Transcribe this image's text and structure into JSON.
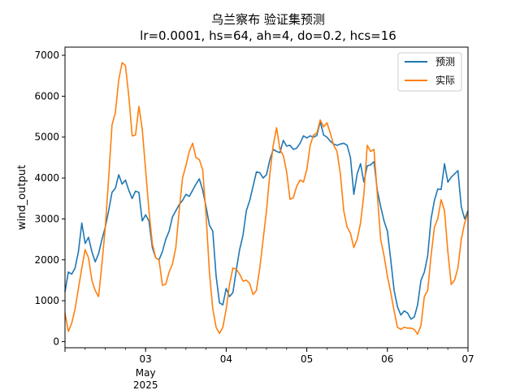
{
  "chart_data": {
    "type": "line",
    "title": "乌兰察布 验证集预测",
    "subtitle": "lr=0.0001, hs=64, ah=4, do=0.2, hcs=16",
    "xlabel": "",
    "ylabel": "wind_output",
    "x_range": [
      "2025-05-02 00:00",
      "2025-05-07 00:00"
    ],
    "ylim": [
      -150,
      7200
    ],
    "y_ticks": [
      0,
      1000,
      2000,
      3000,
      4000,
      5000,
      6000,
      7000
    ],
    "x_ticks": [
      {
        "x": "2025-05-03",
        "label": "03",
        "sub": [
          "May",
          "2025"
        ]
      },
      {
        "x": "2025-05-04",
        "label": "04"
      },
      {
        "x": "2025-05-05",
        "label": "05"
      },
      {
        "x": "2025-05-06",
        "label": "06"
      },
      {
        "x": "2025-05-07",
        "label": "07"
      }
    ],
    "grid": false,
    "legend_position": "top-right",
    "series": [
      {
        "name": "预测",
        "color": "#1f77b4",
        "points": [
          [
            "2025-05-02 00:00",
            1220
          ],
          [
            "2025-05-02 01:00",
            1700
          ],
          [
            "2025-05-02 02:00",
            1650
          ],
          [
            "2025-05-02 03:00",
            1800
          ],
          [
            "2025-05-02 04:00",
            2200
          ],
          [
            "2025-05-02 05:00",
            2900
          ],
          [
            "2025-05-02 06:00",
            2400
          ],
          [
            "2025-05-02 07:00",
            2550
          ],
          [
            "2025-05-02 08:00",
            2200
          ],
          [
            "2025-05-02 09:00",
            1950
          ],
          [
            "2025-05-02 10:00",
            2150
          ],
          [
            "2025-05-02 11:00",
            2500
          ],
          [
            "2025-05-02 12:00",
            2800
          ],
          [
            "2025-05-02 13:00",
            3200
          ],
          [
            "2025-05-02 14:00",
            3650
          ],
          [
            "2025-05-02 15:00",
            3750
          ],
          [
            "2025-05-02 16:00",
            4080
          ],
          [
            "2025-05-02 17:00",
            3850
          ],
          [
            "2025-05-02 18:00",
            3950
          ],
          [
            "2025-05-02 19:00",
            3700
          ],
          [
            "2025-05-02 20:00",
            3500
          ],
          [
            "2025-05-02 21:00",
            3680
          ],
          [
            "2025-05-02 22:00",
            3650
          ],
          [
            "2025-05-02 23:00",
            2950
          ],
          [
            "2025-05-03 00:00",
            3100
          ],
          [
            "2025-05-03 01:00",
            2950
          ],
          [
            "2025-05-03 02:00",
            2300
          ],
          [
            "2025-05-03 03:00",
            2050
          ],
          [
            "2025-05-03 04:00",
            2000
          ],
          [
            "2025-05-03 05:00",
            2200
          ],
          [
            "2025-05-03 06:00",
            2500
          ],
          [
            "2025-05-03 07:00",
            2700
          ],
          [
            "2025-05-03 08:00",
            3050
          ],
          [
            "2025-05-03 09:00",
            3200
          ],
          [
            "2025-05-03 10:00",
            3350
          ],
          [
            "2025-05-03 11:00",
            3450
          ],
          [
            "2025-05-03 12:00",
            3600
          ],
          [
            "2025-05-03 13:00",
            3550
          ],
          [
            "2025-05-03 14:00",
            3700
          ],
          [
            "2025-05-03 15:00",
            3850
          ],
          [
            "2025-05-03 16:00",
            3980
          ],
          [
            "2025-05-03 17:00",
            3700
          ],
          [
            "2025-05-03 18:00",
            3300
          ],
          [
            "2025-05-03 19:00",
            2850
          ],
          [
            "2025-05-03 20:00",
            2700
          ],
          [
            "2025-05-03 21:00",
            1600
          ],
          [
            "2025-05-03 22:00",
            950
          ],
          [
            "2025-05-03 23:00",
            900
          ],
          [
            "2025-05-04 00:00",
            1300
          ],
          [
            "2025-05-04 01:00",
            1100
          ],
          [
            "2025-05-04 02:00",
            1200
          ],
          [
            "2025-05-04 03:00",
            1750
          ],
          [
            "2025-05-04 04:00",
            2250
          ],
          [
            "2025-05-04 05:00",
            2600
          ],
          [
            "2025-05-04 06:00",
            3200
          ],
          [
            "2025-05-04 07:00",
            3450
          ],
          [
            "2025-05-04 08:00",
            3800
          ],
          [
            "2025-05-04 09:00",
            4150
          ],
          [
            "2025-05-04 10:00",
            4130
          ],
          [
            "2025-05-04 11:00",
            4000
          ],
          [
            "2025-05-04 12:00",
            4080
          ],
          [
            "2025-05-04 13:00",
            4450
          ],
          [
            "2025-05-04 14:00",
            4700
          ],
          [
            "2025-05-04 15:00",
            4650
          ],
          [
            "2025-05-04 16:00",
            4620
          ],
          [
            "2025-05-04 17:00",
            4920
          ],
          [
            "2025-05-04 18:00",
            4780
          ],
          [
            "2025-05-04 19:00",
            4800
          ],
          [
            "2025-05-04 20:00",
            4700
          ],
          [
            "2025-05-04 21:00",
            4730
          ],
          [
            "2025-05-04 22:00",
            4850
          ],
          [
            "2025-05-04 23:00",
            5030
          ],
          [
            "2025-05-05 00:00",
            4980
          ],
          [
            "2025-05-05 01:00",
            5030
          ],
          [
            "2025-05-05 02:00",
            5000
          ],
          [
            "2025-05-05 03:00",
            5040
          ],
          [
            "2025-05-05 04:00",
            5380
          ],
          [
            "2025-05-05 05:00",
            5050
          ],
          [
            "2025-05-05 06:00",
            5000
          ],
          [
            "2025-05-05 07:00",
            4900
          ],
          [
            "2025-05-05 08:00",
            4830
          ],
          [
            "2025-05-05 09:00",
            4800
          ],
          [
            "2025-05-05 10:00",
            4830
          ],
          [
            "2025-05-05 11:00",
            4850
          ],
          [
            "2025-05-05 12:00",
            4800
          ],
          [
            "2025-05-05 13:00",
            4500
          ],
          [
            "2025-05-05 14:00",
            3600
          ],
          [
            "2025-05-05 15:00",
            4100
          ],
          [
            "2025-05-05 16:00",
            4350
          ],
          [
            "2025-05-05 17:00",
            3900
          ],
          [
            "2025-05-05 18:00",
            4300
          ],
          [
            "2025-05-05 19:00",
            4320
          ],
          [
            "2025-05-05 20:00",
            4400
          ],
          [
            "2025-05-05 21:00",
            3700
          ],
          [
            "2025-05-05 22:00",
            3300
          ],
          [
            "2025-05-05 23:00",
            2950
          ],
          [
            "2025-05-06 00:00",
            2700
          ],
          [
            "2025-05-06 01:00",
            2000
          ],
          [
            "2025-05-06 02:00",
            1250
          ],
          [
            "2025-05-06 03:00",
            850
          ],
          [
            "2025-05-06 04:00",
            650
          ],
          [
            "2025-05-06 05:00",
            750
          ],
          [
            "2025-05-06 06:00",
            700
          ],
          [
            "2025-05-06 07:00",
            550
          ],
          [
            "2025-05-06 08:00",
            600
          ],
          [
            "2025-05-06 09:00",
            900
          ],
          [
            "2025-05-06 10:00",
            1500
          ],
          [
            "2025-05-06 11:00",
            1700
          ],
          [
            "2025-05-06 12:00",
            2100
          ],
          [
            "2025-05-06 13:00",
            3000
          ],
          [
            "2025-05-06 14:00",
            3450
          ],
          [
            "2025-05-06 15:00",
            3730
          ],
          [
            "2025-05-06 16:00",
            3720
          ],
          [
            "2025-05-06 17:00",
            4350
          ],
          [
            "2025-05-06 18:00",
            3900
          ],
          [
            "2025-05-06 19:00",
            4020
          ],
          [
            "2025-05-06 20:00",
            4100
          ],
          [
            "2025-05-06 21:00",
            4180
          ],
          [
            "2025-05-06 22:00",
            3300
          ],
          [
            "2025-05-06 23:00",
            3000
          ],
          [
            "2025-05-07 00:00",
            3200
          ]
        ]
      },
      {
        "name": "实际",
        "color": "#ff7f0e",
        "points": [
          [
            "2025-05-02 00:00",
            700
          ],
          [
            "2025-05-02 01:00",
            250
          ],
          [
            "2025-05-02 02:00",
            450
          ],
          [
            "2025-05-02 03:00",
            800
          ],
          [
            "2025-05-02 04:00",
            1300
          ],
          [
            "2025-05-02 05:00",
            1800
          ],
          [
            "2025-05-02 06:00",
            2250
          ],
          [
            "2025-05-02 07:00",
            2050
          ],
          [
            "2025-05-02 08:00",
            1500
          ],
          [
            "2025-05-02 09:00",
            1250
          ],
          [
            "2025-05-02 10:00",
            1100
          ],
          [
            "2025-05-02 11:00",
            1900
          ],
          [
            "2025-05-02 12:00",
            2800
          ],
          [
            "2025-05-02 13:00",
            4000
          ],
          [
            "2025-05-02 14:00",
            5300
          ],
          [
            "2025-05-02 15:00",
            5600
          ],
          [
            "2025-05-02 16:00",
            6400
          ],
          [
            "2025-05-02 17:00",
            6820
          ],
          [
            "2025-05-02 18:00",
            6750
          ],
          [
            "2025-05-02 19:00",
            6000
          ],
          [
            "2025-05-02 20:00",
            5030
          ],
          [
            "2025-05-02 21:00",
            5050
          ],
          [
            "2025-05-02 22:00",
            5750
          ],
          [
            "2025-05-02 23:00",
            5200
          ],
          [
            "2025-05-03 00:00",
            4200
          ],
          [
            "2025-05-03 01:00",
            3200
          ],
          [
            "2025-05-03 02:00",
            2400
          ],
          [
            "2025-05-03 03:00",
            2050
          ],
          [
            "2025-05-03 04:00",
            2000
          ],
          [
            "2025-05-03 05:00",
            1380
          ],
          [
            "2025-05-03 06:00",
            1400
          ],
          [
            "2025-05-03 07:00",
            1700
          ],
          [
            "2025-05-03 08:00",
            1900
          ],
          [
            "2025-05-03 09:00",
            2300
          ],
          [
            "2025-05-03 10:00",
            3200
          ],
          [
            "2025-05-03 11:00",
            4000
          ],
          [
            "2025-05-03 12:00",
            4300
          ],
          [
            "2025-05-03 13:00",
            4650
          ],
          [
            "2025-05-03 14:00",
            4850
          ],
          [
            "2025-05-03 15:00",
            4500
          ],
          [
            "2025-05-03 16:00",
            4450
          ],
          [
            "2025-05-03 17:00",
            4200
          ],
          [
            "2025-05-03 18:00",
            3100
          ],
          [
            "2025-05-03 19:00",
            1700
          ],
          [
            "2025-05-03 20:00",
            800
          ],
          [
            "2025-05-03 21:00",
            350
          ],
          [
            "2025-05-03 22:00",
            200
          ],
          [
            "2025-05-03 23:00",
            350
          ],
          [
            "2025-05-04 00:00",
            800
          ],
          [
            "2025-05-04 01:00",
            1400
          ],
          [
            "2025-05-04 02:00",
            1800
          ],
          [
            "2025-05-04 03:00",
            1770
          ],
          [
            "2025-05-04 04:00",
            1650
          ],
          [
            "2025-05-04 05:00",
            1480
          ],
          [
            "2025-05-04 06:00",
            1500
          ],
          [
            "2025-05-04 07:00",
            1420
          ],
          [
            "2025-05-04 08:00",
            1150
          ],
          [
            "2025-05-04 09:00",
            1250
          ],
          [
            "2025-05-04 10:00",
            1800
          ],
          [
            "2025-05-04 11:00",
            2500
          ],
          [
            "2025-05-04 12:00",
            3200
          ],
          [
            "2025-05-04 13:00",
            4100
          ],
          [
            "2025-05-04 14:00",
            4800
          ],
          [
            "2025-05-04 15:00",
            5230
          ],
          [
            "2025-05-04 16:00",
            4700
          ],
          [
            "2025-05-04 17:00",
            4550
          ],
          [
            "2025-05-04 18:00",
            4150
          ],
          [
            "2025-05-04 19:00",
            3480
          ],
          [
            "2025-05-04 20:00",
            3520
          ],
          [
            "2025-05-04 21:00",
            3800
          ],
          [
            "2025-05-04 22:00",
            3950
          ],
          [
            "2025-05-04 23:00",
            3900
          ],
          [
            "2025-05-05 00:00",
            4200
          ],
          [
            "2025-05-05 01:00",
            4800
          ],
          [
            "2025-05-05 02:00",
            5050
          ],
          [
            "2025-05-05 03:00",
            5100
          ],
          [
            "2025-05-05 04:00",
            5420
          ],
          [
            "2025-05-05 05:00",
            5250
          ],
          [
            "2025-05-05 06:00",
            5350
          ],
          [
            "2025-05-05 07:00",
            5100
          ],
          [
            "2025-05-05 08:00",
            4800
          ],
          [
            "2025-05-05 09:00",
            4650
          ],
          [
            "2025-05-05 10:00",
            4100
          ],
          [
            "2025-05-05 11:00",
            3200
          ],
          [
            "2025-05-05 12:00",
            2800
          ],
          [
            "2025-05-05 13:00",
            2650
          ],
          [
            "2025-05-05 14:00",
            2300
          ],
          [
            "2025-05-05 15:00",
            2500
          ],
          [
            "2025-05-05 16:00",
            2900
          ],
          [
            "2025-05-05 17:00",
            3600
          ],
          [
            "2025-05-05 18:00",
            4800
          ],
          [
            "2025-05-05 19:00",
            4650
          ],
          [
            "2025-05-05 20:00",
            4700
          ],
          [
            "2025-05-05 21:00",
            3600
          ],
          [
            "2025-05-05 22:00",
            2500
          ],
          [
            "2025-05-05 23:00",
            2100
          ],
          [
            "2025-05-06 00:00",
            1600
          ],
          [
            "2025-05-06 01:00",
            1200
          ],
          [
            "2025-05-06 02:00",
            750
          ],
          [
            "2025-05-06 03:00",
            350
          ],
          [
            "2025-05-06 04:00",
            300
          ],
          [
            "2025-05-06 05:00",
            350
          ],
          [
            "2025-05-06 06:00",
            330
          ],
          [
            "2025-05-06 07:00",
            330
          ],
          [
            "2025-05-06 08:00",
            300
          ],
          [
            "2025-05-06 09:00",
            180
          ],
          [
            "2025-05-06 10:00",
            400
          ],
          [
            "2025-05-06 11:00",
            1100
          ],
          [
            "2025-05-06 12:00",
            1250
          ],
          [
            "2025-05-06 13:00",
            2100
          ],
          [
            "2025-05-06 14:00",
            2800
          ],
          [
            "2025-05-06 15:00",
            3000
          ],
          [
            "2025-05-06 16:00",
            3470
          ],
          [
            "2025-05-06 17:00",
            3200
          ],
          [
            "2025-05-06 18:00",
            2200
          ],
          [
            "2025-05-06 19:00",
            1400
          ],
          [
            "2025-05-06 20:00",
            1500
          ],
          [
            "2025-05-06 21:00",
            1800
          ],
          [
            "2025-05-06 22:00",
            2500
          ],
          [
            "2025-05-06 23:00",
            2900
          ],
          [
            "2025-05-07 00:00",
            3150
          ]
        ]
      }
    ]
  }
}
